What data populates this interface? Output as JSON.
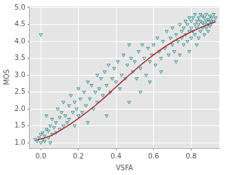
{
  "chart_data": {
    "type": "scatter",
    "x_label": "VSFA",
    "y_label": "MOS",
    "grid": true,
    "xlim": [
      -0.06,
      0.95
    ],
    "xticks": [
      {
        "value": 0,
        "label": "0.0"
      },
      0.2,
      0.4,
      0.6,
      0.8
    ],
    "ylim": [
      0.84,
      5.04
    ],
    "yticks": [
      {
        "value": 1,
        "label": "1.0"
      },
      1.5,
      {
        "value": 2,
        "label": "2.0"
      },
      2.5,
      {
        "value": 3,
        "label": "3.0"
      },
      3.5,
      {
        "value": 4,
        "label": "4.0"
      },
      4.5,
      {
        "value": 5,
        "label": "5.0"
      }
    ],
    "series": [
      {
        "type": "scatter",
        "color": "#2a8c8c",
        "marker": "tri_down",
        "x": [
          -0.02,
          -0.01,
          0.0,
          0.0,
          0.01,
          0.01,
          0.02,
          0.02,
          0.03,
          0.04,
          0.04,
          0.05,
          0.05,
          0.06,
          0.06,
          0.07,
          0.08,
          0.0,
          -0.03,
          0.03,
          0.08,
          0.09,
          0.1,
          0.1,
          0.11,
          0.12,
          0.12,
          0.13,
          0.14,
          0.15,
          0.15,
          0.16,
          0.17,
          0.18,
          0.18,
          0.19,
          0.2,
          0.2,
          0.21,
          0.22,
          0.23,
          0.24,
          0.25,
          0.25,
          0.26,
          0.27,
          0.28,
          0.29,
          0.3,
          0.3,
          0.31,
          0.32,
          0.33,
          0.34,
          0.35,
          0.35,
          0.36,
          0.37,
          0.38,
          0.39,
          0.4,
          0.41,
          0.42,
          0.43,
          0.44,
          0.45,
          0.46,
          0.47,
          0.48,
          0.49,
          0.5,
          0.51,
          0.52,
          0.53,
          0.54,
          0.55,
          0.56,
          0.57,
          0.58,
          0.59,
          0.6,
          0.61,
          0.62,
          0.63,
          0.64,
          0.65,
          0.66,
          0.67,
          0.68,
          0.69,
          0.7,
          0.7,
          0.71,
          0.72,
          0.73,
          0.74,
          0.74,
          0.75,
          0.75,
          0.76,
          0.76,
          0.77,
          0.77,
          0.78,
          0.78,
          0.79,
          0.79,
          0.8,
          0.8,
          0.8,
          0.81,
          0.81,
          0.82,
          0.82,
          0.82,
          0.83,
          0.83,
          0.84,
          0.84,
          0.84,
          0.85,
          0.85,
          0.85,
          0.86,
          0.86,
          0.86,
          0.87,
          0.87,
          0.87,
          0.88,
          0.88,
          0.88,
          0.89,
          0.89,
          0.89,
          0.9,
          0.9,
          0.9,
          0.91,
          0.91,
          0.92,
          0.92,
          0.93,
          0.83,
          0.79,
          0.72,
          0.64,
          0.58,
          0.53,
          0.47
        ],
        "values": [
          1.05,
          1.15,
          1.0,
          1.25,
          1.1,
          1.3,
          1.05,
          1.2,
          1.4,
          1.15,
          1.35,
          1.0,
          1.5,
          1.25,
          1.7,
          1.45,
          1.3,
          4.2,
          1.1,
          1.8,
          1.6,
          2.0,
          1.4,
          1.75,
          1.9,
          1.5,
          2.2,
          1.8,
          1.6,
          2.1,
          1.7,
          2.4,
          1.9,
          1.5,
          2.2,
          2.0,
          1.8,
          2.6,
          2.3,
          1.9,
          2.5,
          2.1,
          2.8,
          1.6,
          2.3,
          2.7,
          2.0,
          2.5,
          3.0,
          2.2,
          2.6,
          2.9,
          2.4,
          3.1,
          2.7,
          1.8,
          3.3,
          2.5,
          2.9,
          3.2,
          2.8,
          3.4,
          2.6,
          3.0,
          3.6,
          2.9,
          3.3,
          2.2,
          3.5,
          3.1,
          3.4,
          2.9,
          3.7,
          3.2,
          3.9,
          3.5,
          3.0,
          3.8,
          3.4,
          3.6,
          3.9,
          3.3,
          4.1,
          3.7,
          3.5,
          4.0,
          3.8,
          4.3,
          3.6,
          4.1,
          3.9,
          4.4,
          3.7,
          4.2,
          4.0,
          4.5,
          3.6,
          4.1,
          4.3,
          3.9,
          4.4,
          4.2,
          4.6,
          4.0,
          4.5,
          4.3,
          4.7,
          4.1,
          4.4,
          4.6,
          4.3,
          4.7,
          4.2,
          4.5,
          4.8,
          4.4,
          4.6,
          4.1,
          4.5,
          4.7,
          4.3,
          4.6,
          4.8,
          4.4,
          4.55,
          4.75,
          4.2,
          4.5,
          4.7,
          4.6,
          4.4,
          4.8,
          4.5,
          4.65,
          4.3,
          4.6,
          4.75,
          4.45,
          4.55,
          4.7,
          4.6,
          4.8,
          4.7,
          3.9,
          3.7,
          3.4,
          3.1,
          2.8,
          2.5,
          3.9
        ]
      },
      {
        "type": "line",
        "color": "#b22222",
        "line_style": "solid",
        "x": [
          -0.02,
          0.05,
          0.1,
          0.2,
          0.3,
          0.4,
          0.5,
          0.6,
          0.7,
          0.8,
          0.9,
          0.93
        ],
        "values": [
          1.08,
          1.2,
          1.35,
          1.72,
          2.15,
          2.65,
          3.15,
          3.6,
          3.98,
          4.28,
          4.52,
          4.58
        ]
      }
    ]
  }
}
